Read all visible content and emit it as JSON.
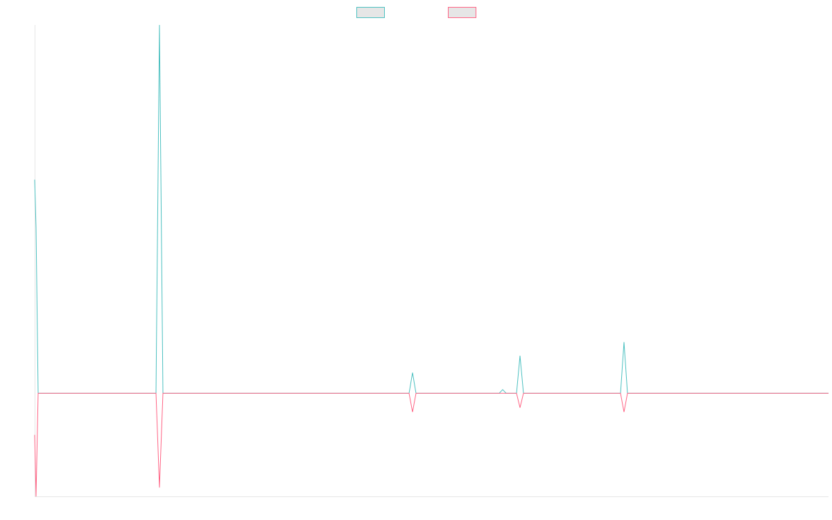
{
  "chart_data": {
    "type": "line",
    "x": [
      0,
      0.4,
      1,
      35,
      36,
      37,
      108,
      109,
      110,
      134,
      135,
      136,
      139,
      140,
      141,
      169,
      170,
      171,
      229
    ],
    "xlim": [
      0,
      229
    ],
    "ylim": [
      -28,
      100
    ],
    "series": [
      {
        "color": "#4bc0c0",
        "values": [
          58,
          45,
          0,
          0,
          100,
          0,
          0,
          5.6,
          0,
          0,
          1,
          0,
          0,
          10.2,
          0,
          0,
          13.9,
          0,
          0
        ]
      },
      {
        "color": "#ff6384",
        "values": [
          -11.3,
          -28,
          0,
          0,
          -25.6,
          0,
          0,
          -5.1,
          0,
          0,
          0,
          0,
          0,
          -3.9,
          0,
          0,
          -5.1,
          0,
          0
        ]
      }
    ],
    "legend": "top",
    "grid": false
  }
}
